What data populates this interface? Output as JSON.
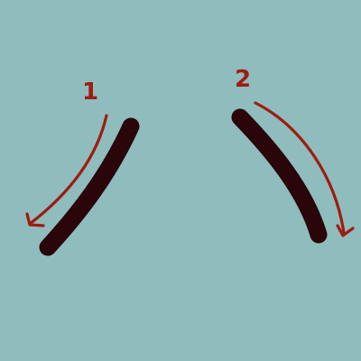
{
  "colors": {
    "background": "#8fbcbd",
    "ink": "#2a0509",
    "annotation": "#9e1c10"
  },
  "strokes": [
    {
      "number": "1",
      "direction": "down-left"
    },
    {
      "number": "2",
      "direction": "down-right"
    }
  ]
}
